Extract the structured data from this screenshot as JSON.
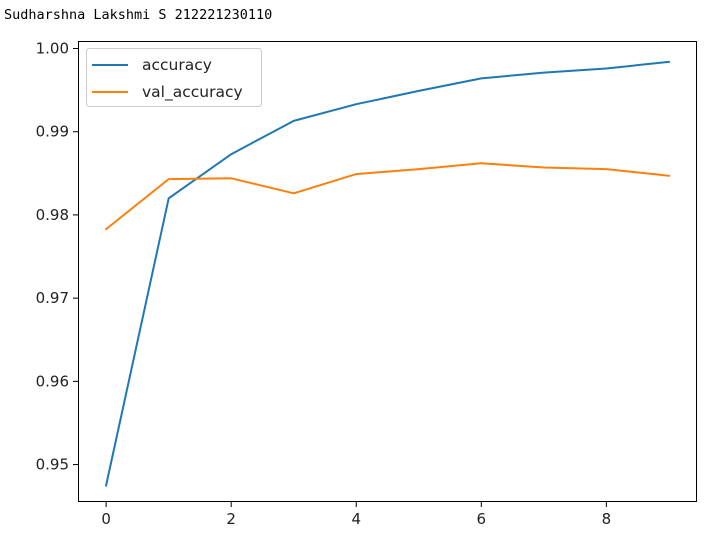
{
  "caption": "Sudharshna Lakshmi S 212221230110",
  "chart_data": {
    "type": "line",
    "title": "",
    "xlabel": "",
    "ylabel": "",
    "x": [
      0,
      1,
      2,
      3,
      4,
      5,
      6,
      7,
      8,
      9
    ],
    "xlim": [
      -0.45,
      9.45
    ],
    "ylim": [
      0.9455,
      1.0009
    ],
    "xticks": [
      0,
      2,
      4,
      6,
      8
    ],
    "yticks": [
      0.95,
      0.96,
      0.97,
      0.98,
      0.99,
      1.0
    ],
    "xtick_labels": [
      "0",
      "2",
      "4",
      "6",
      "8"
    ],
    "ytick_labels": [
      "0.95",
      "0.96",
      "0.97",
      "0.98",
      "0.99",
      "1.00"
    ],
    "grid": false,
    "legend_position": "top-left",
    "series": [
      {
        "name": "accuracy",
        "color": "#1f77b4",
        "values": [
          0.9475,
          0.982,
          0.9873,
          0.9913,
          0.9933,
          0.9949,
          0.9964,
          0.9971,
          0.9976,
          0.9984
        ]
      },
      {
        "name": "val_accuracy",
        "color": "#ff7f0e",
        "values": [
          0.9783,
          0.9843,
          0.9844,
          0.9826,
          0.9849,
          0.9855,
          0.9862,
          0.9857,
          0.9855,
          0.9847
        ]
      }
    ]
  }
}
